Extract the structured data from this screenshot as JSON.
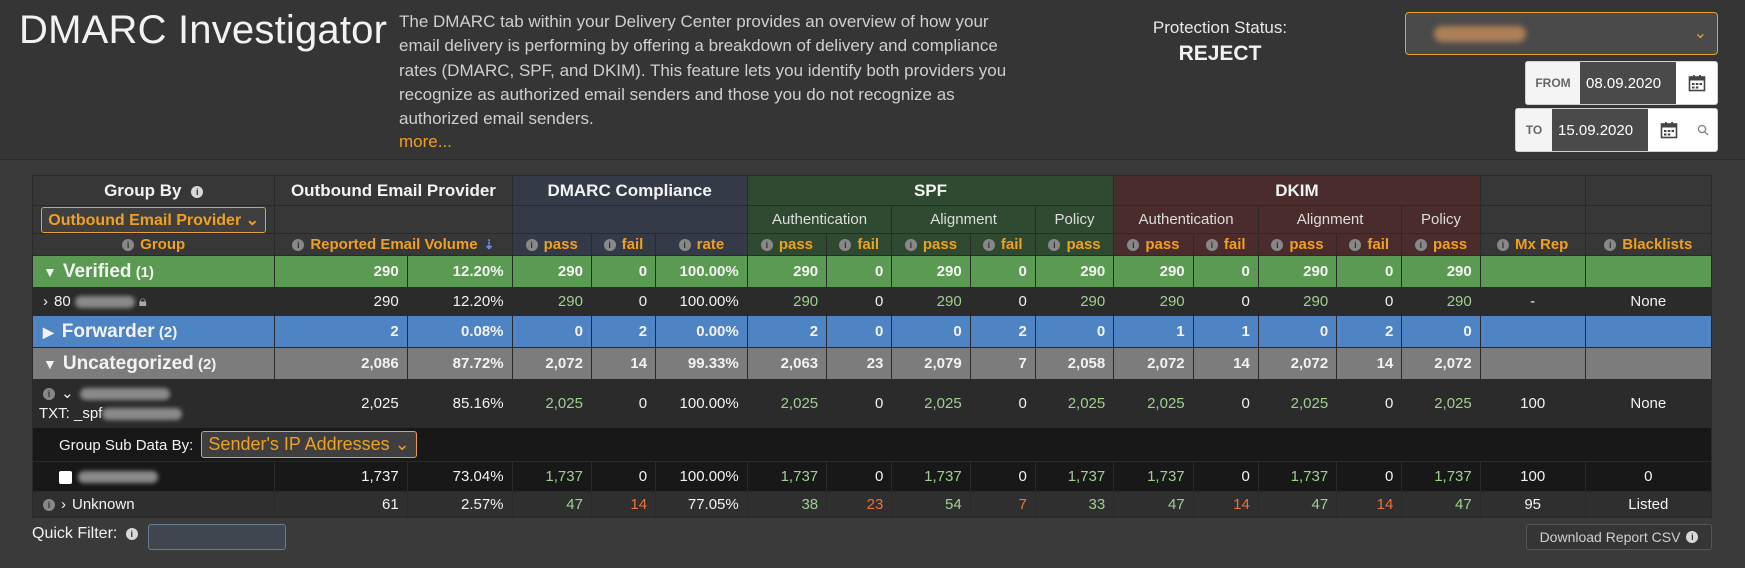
{
  "header": {
    "title": "DMARC Investigator",
    "description": "The DMARC tab within your Delivery Center provides an overview of how your email delivery is performing by offering a breakdown of delivery and compliance rates (DMARC, SPF, and DKIM). This feature lets you identify both providers you recognize as authorized email senders and those you do not recognize as authorized email senders.",
    "more_link": "more...",
    "protection_label": "Protection Status:",
    "protection_value": "REJECT"
  },
  "dates": {
    "from_label": "FROM",
    "from_value": "08.09.2020",
    "to_label": "TO",
    "to_value": "15.09.2020"
  },
  "icons": {
    "calendar": "calendar-icon",
    "search": "search-icon",
    "info": "info-icon",
    "sort": "sort-desc-icon",
    "caret": "chevron-down-icon",
    "expand": "triangle-icon",
    "lock": "lock-icon"
  },
  "colors": {
    "accent": "#f0a020",
    "verified": "#5b9a52",
    "forwarder": "#4f84c4",
    "uncategorized": "#7c7c7c",
    "good": "#9fd090",
    "bad": "#f0703a"
  },
  "table": {
    "group_by_label": "Group By",
    "group_by_value": "Outbound Email Provider",
    "group_col": "Group",
    "col_provider": "Outbound Email Provider",
    "col_volume": "Reported Email Volume",
    "col_dmarc": "DMARC Compliance",
    "col_spf": "SPF",
    "col_dkim": "DKIM",
    "sub_authentication": "Authentication",
    "sub_alignment": "Alignment",
    "sub_policy": "Policy",
    "pass": "pass",
    "fail": "fail",
    "rate": "rate",
    "mx_rep": "Mx Rep",
    "blacklists": "Blacklists",
    "verified": {
      "name": "Verified",
      "count": "(1)",
      "vol": "290",
      "pct": "12.20%",
      "d_pass": "290",
      "d_fail": "0",
      "d_rate": "100.00%",
      "spf_a_pass": "290",
      "spf_a_fail": "0",
      "spf_l_pass": "290",
      "spf_l_fail": "0",
      "spf_p_pass": "290",
      "dk_a_pass": "290",
      "dk_a_fail": "0",
      "dk_l_pass": "290",
      "dk_l_fail": "0",
      "dk_p_pass": "290"
    },
    "verified_row": {
      "name": "80",
      "vol": "290",
      "pct": "12.20%",
      "d_pass": "290",
      "d_fail": "0",
      "d_rate": "100.00%",
      "spf_a_pass": "290",
      "spf_a_fail": "0",
      "spf_l_pass": "290",
      "spf_l_fail": "0",
      "spf_p_pass": "290",
      "dk_a_pass": "290",
      "dk_a_fail": "0",
      "dk_l_pass": "290",
      "dk_l_fail": "0",
      "dk_p_pass": "290",
      "mx": "-",
      "bl": "None"
    },
    "forwarder": {
      "name": "Forwarder",
      "count": "(2)",
      "vol": "2",
      "pct": "0.08%",
      "d_pass": "0",
      "d_fail": "2",
      "d_rate": "0.00%",
      "spf_a_pass": "2",
      "spf_a_fail": "0",
      "spf_l_pass": "0",
      "spf_l_fail": "2",
      "spf_p_pass": "0",
      "dk_a_pass": "1",
      "dk_a_fail": "1",
      "dk_l_pass": "0",
      "dk_l_fail": "2",
      "dk_p_pass": "0"
    },
    "uncategorized": {
      "name": "Uncategorized",
      "count": "(2)",
      "vol": "2,086",
      "pct": "87.72%",
      "d_pass": "2,072",
      "d_fail": "14",
      "d_rate": "99.33%",
      "spf_a_pass": "2,063",
      "spf_a_fail": "23",
      "spf_l_pass": "2,079",
      "spf_l_fail": "7",
      "spf_p_pass": "2,058",
      "dk_a_pass": "2,072",
      "dk_a_fail": "14",
      "dk_l_pass": "2,072",
      "dk_l_fail": "14",
      "dk_p_pass": "2,072"
    },
    "uncat_row": {
      "txt": "TXT: _spf",
      "vol": "2,025",
      "pct": "85.16%",
      "d_pass": "2,025",
      "d_fail": "0",
      "d_rate": "100.00%",
      "spf_a_pass": "2,025",
      "spf_a_fail": "0",
      "spf_l_pass": "2,025",
      "spf_l_fail": "0",
      "spf_p_pass": "2,025",
      "dk_a_pass": "2,025",
      "dk_a_fail": "0",
      "dk_l_pass": "2,025",
      "dk_l_fail": "0",
      "dk_p_pass": "2,025",
      "mx": "100",
      "bl": "None"
    },
    "sub_group_label": "Group Sub Data By:",
    "sub_group_value": "Sender's IP Addresses",
    "ip_row": {
      "vol": "1,737",
      "pct": "73.04%",
      "d_pass": "1,737",
      "d_fail": "0",
      "d_rate": "100.00%",
      "spf_a_pass": "1,737",
      "spf_a_fail": "0",
      "spf_l_pass": "1,737",
      "spf_l_fail": "0",
      "spf_p_pass": "1,737",
      "dk_a_pass": "1,737",
      "dk_a_fail": "0",
      "dk_l_pass": "1,737",
      "dk_l_fail": "0",
      "dk_p_pass": "1,737",
      "mx": "100",
      "bl": "0"
    },
    "unknown_row": {
      "name": "Unknown",
      "vol": "61",
      "pct": "2.57%",
      "d_pass": "47",
      "d_fail": "14",
      "d_rate": "77.05%",
      "spf_a_pass": "38",
      "spf_a_fail": "23",
      "spf_l_pass": "54",
      "spf_l_fail": "7",
      "spf_p_pass": "33",
      "dk_a_pass": "47",
      "dk_a_fail": "14",
      "dk_l_pass": "47",
      "dk_l_fail": "14",
      "dk_p_pass": "47",
      "mx": "95",
      "bl": "Listed"
    }
  },
  "footer": {
    "quick_filter_label": "Quick Filter:",
    "download_label": "Download Report CSV"
  }
}
